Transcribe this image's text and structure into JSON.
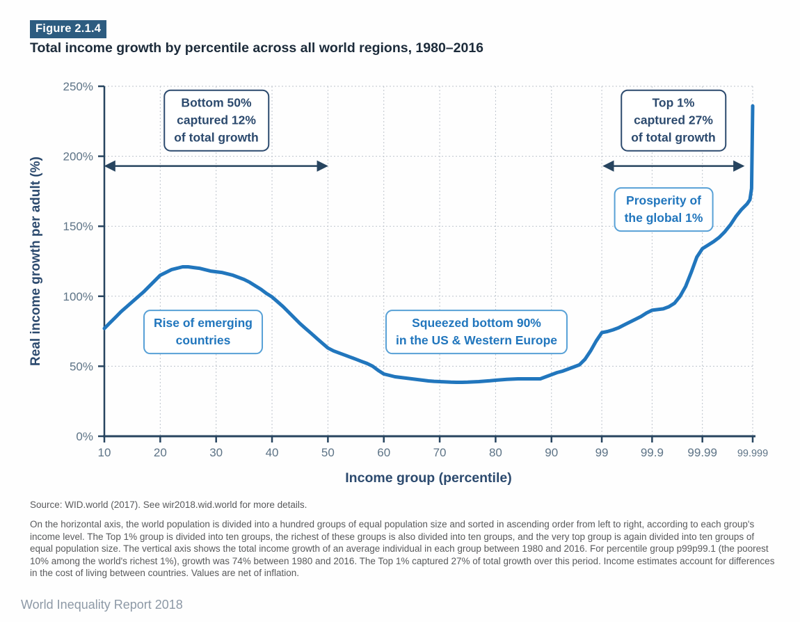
{
  "figure": {
    "badge": "Figure 2.1.4",
    "title": "Total income growth by percentile across all world regions, 1980–2016"
  },
  "chart_data": {
    "type": "line",
    "title": "Total income growth by percentile across all world regions, 1980–2016",
    "xlabel": "Income group (percentile)",
    "ylabel": "Real income growth per adult (%)",
    "x_ticks": [
      10,
      20,
      30,
      40,
      50,
      60,
      70,
      80,
      90,
      99,
      99.9,
      99.99,
      99.999
    ],
    "x_tick_labels": [
      "10",
      "20",
      "30",
      "40",
      "50",
      "60",
      "70",
      "80",
      "90",
      "99",
      "99.9",
      "99.99",
      "99.999"
    ],
    "y_ticks": [
      0,
      50,
      100,
      150,
      200,
      250
    ],
    "y_tick_labels": [
      "0%",
      "50%",
      "100%",
      "150%",
      "200%",
      "250%"
    ],
    "ylim": [
      0,
      250
    ],
    "grid": "dotted",
    "x_scale_note": "Percentiles 10-99 unit steps; top 1% subdivided into tenths, hundredths, thousandths, each subgroup equal width",
    "series": [
      {
        "name": "Real income growth per adult 1980-2016",
        "color": "#2176bd",
        "points": [
          [
            10,
            77
          ],
          [
            11,
            81
          ],
          [
            12,
            85
          ],
          [
            13,
            89
          ],
          [
            14,
            92.5
          ],
          [
            15,
            96
          ],
          [
            16,
            99.5
          ],
          [
            17,
            103
          ],
          [
            18,
            107
          ],
          [
            19,
            111
          ],
          [
            20,
            115
          ],
          [
            21,
            117
          ],
          [
            22,
            119
          ],
          [
            23,
            120
          ],
          [
            24,
            121
          ],
          [
            25,
            121
          ],
          [
            26,
            120.5
          ],
          [
            27,
            120
          ],
          [
            28,
            119
          ],
          [
            29,
            118
          ],
          [
            30,
            117.5
          ],
          [
            31,
            117
          ],
          [
            32,
            116
          ],
          [
            33,
            115
          ],
          [
            34,
            113.5
          ],
          [
            35,
            112
          ],
          [
            36,
            110
          ],
          [
            37,
            107.5
          ],
          [
            38,
            105
          ],
          [
            39,
            102
          ],
          [
            40,
            99.5
          ],
          [
            41,
            96
          ],
          [
            42,
            92.5
          ],
          [
            43,
            88.5
          ],
          [
            44,
            84.5
          ],
          [
            45,
            80.5
          ],
          [
            46,
            77
          ],
          [
            47,
            73.5
          ],
          [
            48,
            70
          ],
          [
            49,
            66.5
          ],
          [
            50,
            63
          ],
          [
            51,
            61
          ],
          [
            52,
            59.5
          ],
          [
            53,
            58
          ],
          [
            54,
            56.5
          ],
          [
            55,
            55
          ],
          [
            56,
            53.5
          ],
          [
            57,
            52
          ],
          [
            58,
            50
          ],
          [
            59,
            47
          ],
          [
            60,
            44.5
          ],
          [
            61,
            43.5
          ],
          [
            62,
            42.5
          ],
          [
            63,
            42
          ],
          [
            64,
            41.5
          ],
          [
            65,
            41
          ],
          [
            66,
            40.5
          ],
          [
            67,
            40
          ],
          [
            68,
            39.5
          ],
          [
            69,
            39.2
          ],
          [
            70,
            39
          ],
          [
            71,
            38.8
          ],
          [
            72,
            38.6
          ],
          [
            73,
            38.5
          ],
          [
            74,
            38.5
          ],
          [
            75,
            38.6
          ],
          [
            76,
            38.8
          ],
          [
            77,
            39
          ],
          [
            78,
            39.3
          ],
          [
            79,
            39.6
          ],
          [
            80,
            40
          ],
          [
            81,
            40.3
          ],
          [
            82,
            40.6
          ],
          [
            83,
            40.8
          ],
          [
            84,
            41
          ],
          [
            85,
            41
          ],
          [
            86,
            41
          ],
          [
            87,
            41
          ],
          [
            88,
            41
          ],
          [
            89,
            42.5
          ],
          [
            90,
            44
          ],
          [
            91,
            45.5
          ],
          [
            92,
            46.5
          ],
          [
            93,
            48
          ],
          [
            94,
            49.5
          ],
          [
            95,
            51
          ],
          [
            96,
            55
          ],
          [
            97,
            61
          ],
          [
            98,
            68
          ],
          [
            99,
            74
          ],
          [
            99.1,
            74.8
          ],
          [
            99.2,
            76
          ],
          [
            99.3,
            77.5
          ],
          [
            99.4,
            79.5
          ],
          [
            99.5,
            81.5
          ],
          [
            99.6,
            83.5
          ],
          [
            99.7,
            85.5
          ],
          [
            99.8,
            88
          ],
          [
            99.9,
            90
          ],
          [
            99.91,
            90.5
          ],
          [
            99.92,
            91
          ],
          [
            99.93,
            92.5
          ],
          [
            99.94,
            95
          ],
          [
            99.95,
            100
          ],
          [
            99.96,
            107
          ],
          [
            99.97,
            117
          ],
          [
            99.98,
            128
          ],
          [
            99.99,
            134
          ],
          [
            99.991,
            136.5
          ],
          [
            99.992,
            139
          ],
          [
            99.993,
            142
          ],
          [
            99.994,
            146
          ],
          [
            99.995,
            151
          ],
          [
            99.996,
            157
          ],
          [
            99.997,
            162
          ],
          [
            99.998,
            166
          ],
          [
            99.9985,
            169
          ],
          [
            99.9988,
            177
          ],
          [
            99.999,
            236
          ]
        ]
      }
    ],
    "arrows": [
      {
        "label": "Bottom 50% span",
        "from_percentile": 10,
        "to_percentile": 50,
        "at_value": 193
      },
      {
        "label": "Top 1% span",
        "from_percentile": 99.02,
        "to_percentile": 99.9975,
        "at_value": 193
      }
    ],
    "annotations": [
      {
        "text": "Bottom 50%\ncaptured 12%\nof total growth",
        "style": "dark"
      },
      {
        "text": "Top 1%\ncaptured 27%\nof total growth",
        "style": "dark"
      },
      {
        "text": "Prosperity of\nthe global 1%",
        "style": "blue"
      },
      {
        "text": "Rise of emerging\ncountries",
        "style": "blue"
      },
      {
        "text": "Squeezed bottom 90%\nin the US & Western Europe",
        "style": "blue"
      }
    ],
    "legend": "none"
  },
  "colors": {
    "curve": "#2176bd",
    "axis": "#27445f",
    "grid": "#bcc3cb",
    "dark_annotation": "#2c4a6e",
    "blue_annotation": "#2176bd",
    "badge_bg": "#2d5c80",
    "tick_label": "#5d7386"
  },
  "source": "Source: WID.world (2017). See wir2018.wid.world for more details.",
  "note": "On the horizontal axis, the world population is divided into a hundred groups of equal population size and sorted in ascending order from left to right, according to each group's income level. The Top 1% group is divided into ten groups, the richest of these groups is also divided into ten groups, and the very top group is again divided into ten groups of equal population size. The vertical axis shows the total income growth of an average individual in each group between 1980 and 2016. For percentile group p99p99.1 (the poorest 10% among the world's richest 1%), growth was 74% between 1980 and 2016. The Top 1% captured 27% of total growth over this period. Income estimates account for differences in the cost of living between countries. Values are net of inflation.",
  "footer": "World Inequality Report 2018"
}
